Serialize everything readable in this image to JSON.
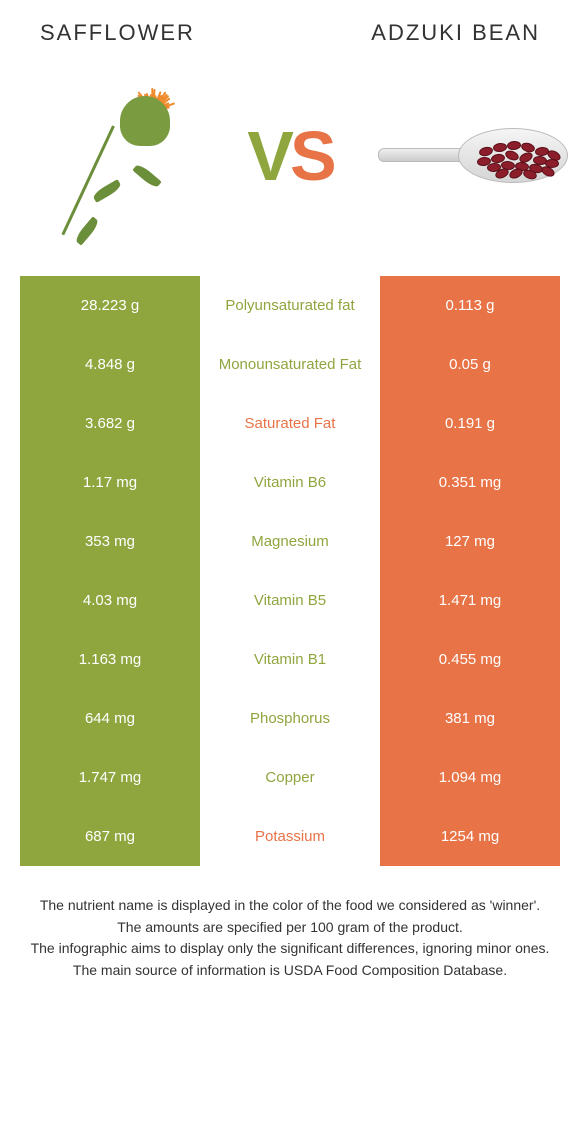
{
  "header": {
    "left_title": "Safflower",
    "right_title": "Adzuki bean"
  },
  "vs": {
    "v": "V",
    "s": "S"
  },
  "colors": {
    "left_bg": "#8fa63f",
    "right_bg": "#e77347",
    "mid_left_text": "#8fa63f",
    "mid_right_text": "#e77347"
  },
  "table": {
    "rows": [
      {
        "left": "28.223 g",
        "mid": "Polyunsaturated fat",
        "right": "0.113 g",
        "winner": "left"
      },
      {
        "left": "4.848 g",
        "mid": "Monounsaturated Fat",
        "right": "0.05 g",
        "winner": "left"
      },
      {
        "left": "3.682 g",
        "mid": "Saturated Fat",
        "right": "0.191 g",
        "winner": "right"
      },
      {
        "left": "1.17 mg",
        "mid": "Vitamin B6",
        "right": "0.351 mg",
        "winner": "left"
      },
      {
        "left": "353 mg",
        "mid": "Magnesium",
        "right": "127 mg",
        "winner": "left"
      },
      {
        "left": "4.03 mg",
        "mid": "Vitamin B5",
        "right": "1.471 mg",
        "winner": "left"
      },
      {
        "left": "1.163 mg",
        "mid": "Vitamin B1",
        "right": "0.455 mg",
        "winner": "left"
      },
      {
        "left": "644 mg",
        "mid": "Phosphorus",
        "right": "381 mg",
        "winner": "left"
      },
      {
        "left": "1.747 mg",
        "mid": "Copper",
        "right": "1.094 mg",
        "winner": "left"
      },
      {
        "left": "687 mg",
        "mid": "Potassium",
        "right": "1254 mg",
        "winner": "right"
      }
    ]
  },
  "footer": {
    "line1": "The nutrient name is displayed in the color of the food we considered as 'winner'.",
    "line2": "The amounts are specified per 100 gram of the product.",
    "line3": "The infographic aims to display only the significant differences, ignoring minor ones.",
    "line4": "The main source of information is USDA Food Composition Database."
  }
}
